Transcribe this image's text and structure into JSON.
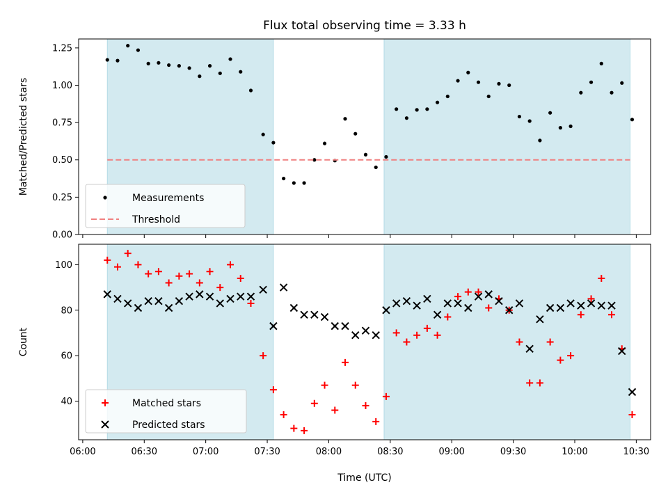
{
  "chart_data": [
    {
      "type": "scatter",
      "panel": "top",
      "title": "Flux total observing time = 3.33 h",
      "xlabel": "",
      "ylabel": "Matched/Predicted stars",
      "xlim": [
        "05:58",
        "10:37"
      ],
      "ylim": [
        0,
        1.31
      ],
      "grid": false,
      "legend": "lower-left",
      "yticks": [
        "0.00",
        "0.25",
        "0.50",
        "0.75",
        "1.00",
        "1.25"
      ],
      "shaded_ranges": [
        [
          "06:12",
          "07:33"
        ],
        [
          "08:27",
          "10:27"
        ]
      ],
      "shade_color": "#d3eaf0",
      "series": [
        {
          "name": "Measurements",
          "marker": "dot",
          "color": "#000000",
          "x": [
            "06:12",
            "06:17",
            "06:22",
            "06:27",
            "06:32",
            "06:37",
            "06:42",
            "06:47",
            "06:52",
            "06:57",
            "07:02",
            "07:07",
            "07:12",
            "07:17",
            "07:22",
            "07:28",
            "07:33",
            "07:38",
            "07:43",
            "07:48",
            "07:53",
            "07:58",
            "08:03",
            "08:08",
            "08:13",
            "08:18",
            "08:23",
            "08:28",
            "08:33",
            "08:38",
            "08:43",
            "08:48",
            "08:53",
            "08:58",
            "09:03",
            "09:08",
            "09:13",
            "09:18",
            "09:23",
            "09:28",
            "09:33",
            "09:38",
            "09:43",
            "09:48",
            "09:53",
            "09:58",
            "10:03",
            "10:08",
            "10:13",
            "10:18",
            "10:23",
            "10:28"
          ],
          "y": [
            1.17,
            1.165,
            1.265,
            1.235,
            1.145,
            1.15,
            1.135,
            1.13,
            1.115,
            1.06,
            1.13,
            1.08,
            1.175,
            1.09,
            0.965,
            0.67,
            0.615,
            0.375,
            0.345,
            0.345,
            0.5,
            0.61,
            0.495,
            0.775,
            0.675,
            0.535,
            0.45,
            0.52,
            0.84,
            0.78,
            0.835,
            0.84,
            0.885,
            0.925,
            1.03,
            1.085,
            1.02,
            0.925,
            1.01,
            1.0,
            0.79,
            0.76,
            0.63,
            0.815,
            0.715,
            0.725,
            0.95,
            1.02,
            1.145,
            0.95,
            1.015,
            0.77
          ]
        },
        {
          "name": "Threshold",
          "type": "line",
          "style": "dashed",
          "color": "#f08080",
          "x": [
            "06:12",
            "10:27"
          ],
          "y": [
            0.5,
            0.5
          ]
        }
      ]
    },
    {
      "type": "scatter",
      "panel": "bottom",
      "title": "",
      "xlabel": "Time (UTC)",
      "ylabel": "Count",
      "xlim": [
        "05:58",
        "10:37"
      ],
      "ylim": [
        23,
        109
      ],
      "grid": false,
      "legend": "lower-left",
      "xticks": [
        "06:00",
        "06:30",
        "07:00",
        "07:30",
        "08:00",
        "08:30",
        "09:00",
        "09:30",
        "10:00",
        "10:30"
      ],
      "yticks": [
        "40",
        "60",
        "80",
        "100"
      ],
      "shaded_ranges": [
        [
          "06:12",
          "07:33"
        ],
        [
          "08:27",
          "10:27"
        ]
      ],
      "shade_color": "#d3eaf0",
      "series": [
        {
          "name": "Matched stars",
          "marker": "plus",
          "color": "#ff0000",
          "x": [
            "06:12",
            "06:17",
            "06:22",
            "06:27",
            "06:32",
            "06:37",
            "06:42",
            "06:47",
            "06:52",
            "06:57",
            "07:02",
            "07:07",
            "07:12",
            "07:17",
            "07:22",
            "07:28",
            "07:33",
            "07:38",
            "07:43",
            "07:48",
            "07:53",
            "07:58",
            "08:03",
            "08:08",
            "08:13",
            "08:18",
            "08:23",
            "08:28",
            "08:33",
            "08:38",
            "08:43",
            "08:48",
            "08:53",
            "08:58",
            "09:03",
            "09:08",
            "09:13",
            "09:18",
            "09:23",
            "09:28",
            "09:33",
            "09:38",
            "09:43",
            "09:48",
            "09:53",
            "09:58",
            "10:03",
            "10:08",
            "10:13",
            "10:18",
            "10:23",
            "10:28"
          ],
          "y": [
            102,
            99,
            105,
            100,
            96,
            97,
            92,
            95,
            96,
            92,
            97,
            90,
            100,
            94,
            83,
            60,
            45,
            34,
            28,
            27,
            39,
            47,
            36,
            57,
            47,
            38,
            31,
            42,
            70,
            66,
            69,
            72,
            69,
            77,
            86,
            88,
            88,
            81,
            85,
            80,
            66,
            48,
            48,
            66,
            58,
            60,
            78,
            85,
            94,
            78,
            63,
            34
          ]
        },
        {
          "name": "Predicted stars",
          "marker": "x",
          "color": "#000000",
          "x": [
            "06:12",
            "06:17",
            "06:22",
            "06:27",
            "06:32",
            "06:37",
            "06:42",
            "06:47",
            "06:52",
            "06:57",
            "07:02",
            "07:07",
            "07:12",
            "07:17",
            "07:22",
            "07:28",
            "07:33",
            "07:38",
            "07:43",
            "07:48",
            "07:53",
            "07:58",
            "08:03",
            "08:08",
            "08:13",
            "08:18",
            "08:23",
            "08:28",
            "08:33",
            "08:38",
            "08:43",
            "08:48",
            "08:53",
            "08:58",
            "09:03",
            "09:08",
            "09:13",
            "09:18",
            "09:23",
            "09:28",
            "09:33",
            "09:38",
            "09:43",
            "09:48",
            "09:53",
            "09:58",
            "10:03",
            "10:08",
            "10:13",
            "10:18",
            "10:23",
            "10:28"
          ],
          "y": [
            87,
            85,
            83,
            81,
            84,
            84,
            81,
            84,
            86,
            87,
            86,
            83,
            85,
            86,
            86,
            89,
            73,
            90,
            81,
            78,
            78,
            77,
            73,
            73,
            69,
            71,
            69,
            80,
            83,
            84,
            82,
            85,
            78,
            83,
            83,
            81,
            86,
            87,
            84,
            80,
            83,
            63,
            76,
            81,
            81,
            83,
            82,
            83,
            82,
            82,
            62,
            44
          ]
        }
      ]
    }
  ]
}
